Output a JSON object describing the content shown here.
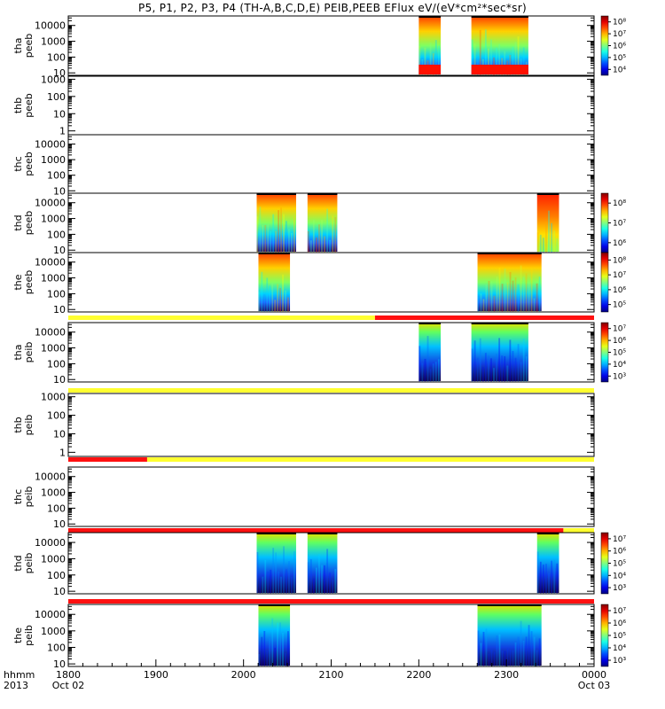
{
  "title": "P5, P1, P2, P3, P4 (TH-A,B,C,D,E) PEIB,PEEB EFlux eV/(eV*cm²*sec*sr)",
  "chart_data": {
    "type": "heatmap",
    "title": "P5, P1, P2, P3, P4 (TH-A,B,C,D,E) PEIB,PEEB EFlux eV/(eV*cm²*sec*sr)",
    "x_axis": {
      "range_hours": [
        18,
        24
      ],
      "tick_labels": [
        "1800",
        "1900",
        "2000",
        "2100",
        "2200",
        "2300",
        "0000"
      ],
      "ticks": [
        18,
        19,
        20,
        21,
        22,
        23,
        24
      ],
      "start_date": "Oct 02",
      "end_date": "Oct 03",
      "header": "hhmm",
      "year": "2013"
    },
    "panels": [
      {
        "probe": "tha",
        "kind": "peeb",
        "label": [
          "tha",
          "peeb"
        ],
        "ytick_labels": [
          "10",
          "100",
          "1000",
          "10000"
        ],
        "yticks": [
          10,
          100,
          1000,
          10000
        ],
        "ylim": [
          7,
          40000
        ],
        "blocks": [
          [
            22.0,
            22.25
          ],
          [
            22.6,
            23.25
          ]
        ],
        "colorbar": [
          "10⁴",
          "10⁵",
          "10⁶",
          "10⁷",
          "10⁸"
        ],
        "mode_bar": null
      },
      {
        "probe": "thb",
        "kind": "peeb",
        "label": [
          "thb",
          "peeb"
        ],
        "ytick_labels": [
          "1",
          "10",
          "100",
          "1000"
        ],
        "yticks": [
          1,
          10,
          100,
          1000
        ],
        "ylim": [
          0.6,
          1500
        ],
        "blocks": [],
        "colorbar": null,
        "mode_bar": null
      },
      {
        "probe": "thc",
        "kind": "peeb",
        "label": [
          "thc",
          "peeb"
        ],
        "ytick_labels": [
          "10",
          "100",
          "1000",
          "10000"
        ],
        "yticks": [
          10,
          100,
          1000,
          10000
        ],
        "ylim": [
          7,
          40000
        ],
        "blocks": [],
        "colorbar": null,
        "mode_bar": null
      },
      {
        "probe": "thd",
        "kind": "peeb",
        "label": [
          "thd",
          "peeb"
        ],
        "ytick_labels": [
          "10",
          "100",
          "1000",
          "10000"
        ],
        "yticks": [
          10,
          100,
          1000,
          10000
        ],
        "ylim": [
          7,
          40000
        ],
        "blocks": [
          [
            20.15,
            20.6
          ],
          [
            20.73,
            21.07
          ],
          [
            23.35,
            23.6
          ]
        ],
        "colorbar": [
          "10⁶",
          "10⁷",
          "10⁸"
        ],
        "mode_bar": null
      },
      {
        "probe": "the",
        "kind": "peeb",
        "label": [
          "the",
          "peeb"
        ],
        "ytick_labels": [
          "10",
          "100",
          "1000",
          "10000"
        ],
        "yticks": [
          10,
          100,
          1000,
          10000
        ],
        "ylim": [
          7,
          40000
        ],
        "blocks": [
          [
            20.17,
            20.53
          ],
          [
            22.67,
            23.4
          ]
        ],
        "colorbar": [
          "10⁵",
          "10⁶",
          "10⁷",
          "10⁸"
        ],
        "mode_bar": [
          [
            "yellow",
            18,
            21.5
          ],
          [
            "red",
            21.5,
            24
          ]
        ]
      },
      {
        "probe": "tha",
        "kind": "peib",
        "label": [
          "tha",
          "peib"
        ],
        "ytick_labels": [
          "10",
          "100",
          "1000",
          "10000"
        ],
        "yticks": [
          10,
          100,
          1000,
          10000
        ],
        "ylim": [
          7,
          40000
        ],
        "blocks": [
          [
            22.0,
            22.25
          ],
          [
            22.6,
            23.25
          ]
        ],
        "colorbar": [
          "10³",
          "10⁴",
          "10⁵",
          "10⁶",
          "10⁷"
        ],
        "mode_bar": [
          [
            "yellow",
            18,
            24
          ]
        ]
      },
      {
        "probe": "thb",
        "kind": "peib",
        "label": [
          "thb",
          "peib"
        ],
        "ytick_labels": [
          "1",
          "10",
          "100",
          "1000"
        ],
        "yticks": [
          1,
          10,
          100,
          1000
        ],
        "ylim": [
          0.6,
          1500
        ],
        "blocks": [],
        "colorbar": null,
        "mode_bar": [
          [
            "red",
            18,
            18.9
          ],
          [
            "yellow",
            18.9,
            24
          ]
        ]
      },
      {
        "probe": "thc",
        "kind": "peib",
        "label": [
          "thc",
          "peib"
        ],
        "ytick_labels": [
          "10",
          "100",
          "1000",
          "10000"
        ],
        "yticks": [
          10,
          100,
          1000,
          10000
        ],
        "ylim": [
          7,
          40000
        ],
        "blocks": [],
        "colorbar": null,
        "mode_bar": [
          [
            "red",
            18,
            23.65
          ],
          [
            "yellow",
            23.65,
            24
          ]
        ]
      },
      {
        "probe": "thd",
        "kind": "peib",
        "label": [
          "thd",
          "peib"
        ],
        "ytick_labels": [
          "10",
          "100",
          "1000",
          "10000"
        ],
        "yticks": [
          10,
          100,
          1000,
          10000
        ],
        "ylim": [
          7,
          40000
        ],
        "blocks": [
          [
            20.15,
            20.6
          ],
          [
            20.73,
            21.07
          ],
          [
            23.35,
            23.6
          ]
        ],
        "colorbar": [
          "10³",
          "10⁴",
          "10⁵",
          "10⁶",
          "10⁷"
        ],
        "mode_bar": [
          [
            "red",
            18,
            24
          ]
        ]
      },
      {
        "probe": "the",
        "kind": "peib",
        "label": [
          "the",
          "peib"
        ],
        "ytick_labels": [
          "10",
          "100",
          "1000",
          "10000"
        ],
        "yticks": [
          10,
          100,
          1000,
          10000
        ],
        "ylim": [
          7,
          40000
        ],
        "blocks": [
          [
            20.17,
            20.53
          ],
          [
            22.67,
            23.4
          ]
        ],
        "colorbar": [
          "10³",
          "10⁴",
          "10⁵",
          "10⁶",
          "10⁷"
        ],
        "mode_bar": null
      }
    ]
  }
}
